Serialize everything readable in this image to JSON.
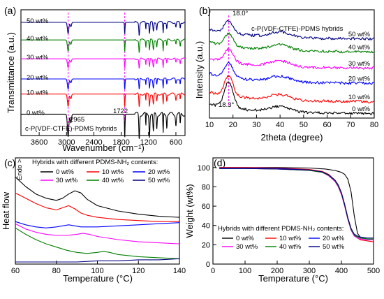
{
  "colors": {
    "s0": "#000000",
    "s10": "#ff0000",
    "s20": "#0000ff",
    "s30": "#ff00ff",
    "s40": "#008000",
    "s50": "#000080",
    "guide": "#ff00ff"
  },
  "chart_data": [
    {
      "panel": "(a)",
      "type": "line",
      "title": "",
      "xlabel": "Wavenumber (cm⁻¹)",
      "ylabel": "Transmittance (a.u.)",
      "xlim": [
        4000,
        400
      ],
      "xticks": [
        3600,
        3000,
        2400,
        1800,
        1200,
        600
      ],
      "annotations": {
        "sample": "c-P(VDF-CTFE)-PDMS hybrids",
        "peak1": "2965",
        "peak2": "1722"
      },
      "guides_x": [
        2965,
        1722
      ],
      "series": [
        {
          "name": "0 wt%",
          "color_key": "s0",
          "baseline": 0.13,
          "amp": 0.2,
          "labeled": true
        },
        {
          "name": "10 wt%",
          "color_key": "s10",
          "baseline": 0.29,
          "amp": 0.11,
          "labeled": true
        },
        {
          "name": "20 wt%",
          "color_key": "s20",
          "baseline": 0.41,
          "amp": 0.09,
          "labeled": true
        },
        {
          "name": "30 wt%",
          "color_key": "s30",
          "baseline": 0.57,
          "amp": 0.08,
          "labeled": true
        },
        {
          "name": "40 wt%",
          "color_key": "s40",
          "baseline": 0.72,
          "amp": 0.1,
          "labeled": true
        },
        {
          "name": "50 wt%",
          "color_key": "s50",
          "baseline": 0.86,
          "amp": 0.1,
          "labeled": true
        }
      ]
    },
    {
      "panel": "(b)",
      "type": "line",
      "title": "c-P(VDF-CTFE)-PDMS hybrids",
      "xlabel": "2theta (degree)",
      "ylabel": "Intensity (a.u.)",
      "xlim": [
        10,
        80
      ],
      "xticks": [
        10,
        20,
        30,
        40,
        50,
        60,
        70,
        80
      ],
      "annotations": {
        "peak_top": "18.0°",
        "peak_bottom": "18.3°"
      },
      "guides_x": [
        18.2
      ],
      "series": [
        {
          "name": "0 wt%",
          "color_key": "s0",
          "base": 0.04,
          "peak": 0.24
        },
        {
          "name": "10 wt%",
          "color_key": "s10",
          "base": 0.15,
          "peak": 0.18
        },
        {
          "name": "20 wt%",
          "color_key": "s20",
          "base": 0.32,
          "peak": 0.13
        },
        {
          "name": "30 wt%",
          "color_key": "s30",
          "base": 0.46,
          "peak": 0.12
        },
        {
          "name": "40 wt%",
          "color_key": "s40",
          "base": 0.61,
          "peak": 0.11
        },
        {
          "name": "50 wt%",
          "color_key": "s50",
          "base": 0.73,
          "peak": 0.11
        }
      ]
    },
    {
      "panel": "(c)",
      "type": "line",
      "title": "",
      "xlabel": "Temperature (°C)",
      "ylabel": "Heat flow",
      "endo": "Endo >",
      "xlim": [
        60,
        140
      ],
      "xticks": [
        60,
        80,
        100,
        120,
        140
      ],
      "legend_title": "Hybrids with different PDMS-NH₂ contents:",
      "legend_position": "top",
      "series": [
        {
          "name": "0 wt%",
          "color_key": "s0",
          "x": [
            60,
            65,
            70,
            75,
            80,
            83,
            86,
            89,
            92,
            95,
            100,
            110,
            120,
            130,
            140
          ],
          "y": [
            0.82,
            0.73,
            0.66,
            0.62,
            0.6,
            0.62,
            0.66,
            0.69,
            0.67,
            0.61,
            0.55,
            0.5,
            0.47,
            0.45,
            0.44
          ]
        },
        {
          "name": "10 wt%",
          "color_key": "s10",
          "x": [
            60,
            65,
            70,
            75,
            80,
            83,
            86,
            89,
            92,
            95,
            100,
            110,
            120,
            130,
            140
          ],
          "y": [
            0.67,
            0.62,
            0.57,
            0.53,
            0.51,
            0.53,
            0.55,
            0.52,
            0.48,
            0.46,
            0.44,
            0.42,
            0.41,
            0.4,
            0.4
          ]
        },
        {
          "name": "20 wt%",
          "color_key": "s20",
          "x": [
            60,
            65,
            70,
            75,
            80,
            83,
            86,
            89,
            92,
            95,
            100,
            110,
            120,
            130,
            140
          ],
          "y": [
            0.4,
            0.37,
            0.35,
            0.34,
            0.35,
            0.36,
            0.37,
            0.36,
            0.35,
            0.35,
            0.35,
            0.36,
            0.37,
            0.38,
            0.39
          ]
        },
        {
          "name": "30 wt%",
          "color_key": "s30",
          "x": [
            60,
            65,
            70,
            75,
            80,
            85,
            90,
            93,
            96,
            100,
            110,
            120,
            130,
            140
          ],
          "y": [
            0.38,
            0.33,
            0.3,
            0.28,
            0.27,
            0.27,
            0.28,
            0.29,
            0.28,
            0.26,
            0.23,
            0.21,
            0.2,
            0.19
          ]
        },
        {
          "name": "40 wt%",
          "color_key": "s40",
          "x": [
            60,
            65,
            70,
            75,
            80,
            85,
            90,
            95,
            100,
            103,
            106,
            110,
            120,
            130,
            140
          ],
          "y": [
            0.34,
            0.28,
            0.23,
            0.19,
            0.16,
            0.13,
            0.11,
            0.1,
            0.11,
            0.12,
            0.11,
            0.09,
            0.07,
            0.06,
            0.05
          ]
        },
        {
          "name": "50 wt%",
          "color_key": "s50",
          "x": [
            60,
            70,
            80,
            90,
            100,
            110,
            120,
            130,
            140
          ],
          "y": [
            0.02,
            0.02,
            0.02,
            0.02,
            0.03,
            0.03,
            0.04,
            0.04,
            0.05
          ]
        }
      ]
    },
    {
      "panel": "(d)",
      "type": "line",
      "title": "",
      "xlabel": "Temperature (°C)",
      "ylabel": "Weight (wt%)",
      "xlim": [
        0,
        500
      ],
      "ylim": [
        0,
        110
      ],
      "xticks": [
        0,
        100,
        200,
        300,
        400,
        500
      ],
      "yticks": [
        0,
        20,
        40,
        60,
        80,
        100
      ],
      "legend_title": "Hybrids with different PDMS-NH₂ contents:",
      "legend_position": "bottom",
      "series": [
        {
          "name": "0 wt%",
          "color_key": "s0",
          "x": [
            20,
            100,
            200,
            300,
            350,
            380,
            400,
            410,
            420,
            430,
            440,
            450,
            460,
            480,
            500
          ],
          "y": [
            100,
            100,
            100,
            99.5,
            98.5,
            97,
            95,
            93,
            88,
            75,
            50,
            32,
            27,
            26,
            26
          ]
        },
        {
          "name": "10 wt%",
          "color_key": "s10",
          "x": [
            20,
            100,
            200,
            300,
            340,
            360,
            380,
            390,
            400,
            410,
            420,
            430,
            440,
            450,
            460,
            480,
            500
          ],
          "y": [
            100,
            100,
            99.5,
            98,
            96,
            93,
            87,
            82,
            74,
            62,
            48,
            37,
            30,
            27,
            25,
            24,
            23
          ]
        },
        {
          "name": "20 wt%",
          "color_key": "s20",
          "x": [
            20,
            100,
            200,
            300,
            340,
            360,
            380,
            390,
            400,
            410,
            420,
            430,
            440,
            450,
            460,
            480,
            500
          ],
          "y": [
            99.5,
            99.5,
            99,
            97.5,
            95.5,
            92,
            86,
            81,
            73,
            61,
            47,
            36,
            30,
            28,
            27,
            26,
            26
          ]
        },
        {
          "name": "30 wt%",
          "color_key": "s30",
          "x": [
            20,
            100,
            200,
            300,
            340,
            360,
            380,
            390,
            400,
            410,
            420,
            430,
            440,
            450,
            460,
            480,
            500
          ],
          "y": [
            99,
            99,
            98.5,
            97,
            95,
            91.5,
            85.5,
            80,
            72,
            60,
            46,
            35,
            29,
            27,
            26,
            25,
            25
          ]
        },
        {
          "name": "40 wt%",
          "color_key": "s40",
          "x": [
            20,
            100,
            200,
            300,
            340,
            360,
            380,
            390,
            400,
            410,
            420,
            430,
            440,
            450,
            460,
            480,
            500
          ],
          "y": [
            99,
            99,
            98.5,
            97,
            95,
            92,
            86.5,
            81,
            73,
            61,
            47,
            36,
            30,
            28,
            27,
            26,
            26
          ]
        },
        {
          "name": "50 wt%",
          "color_key": "s50",
          "x": [
            20,
            100,
            200,
            300,
            340,
            360,
            380,
            390,
            400,
            410,
            420,
            430,
            440,
            450,
            460,
            480,
            500
          ],
          "y": [
            99,
            99,
            98.5,
            97.5,
            95.5,
            92.5,
            87,
            82,
            74,
            62,
            48,
            37,
            31,
            29,
            28,
            27,
            27
          ]
        }
      ]
    }
  ]
}
